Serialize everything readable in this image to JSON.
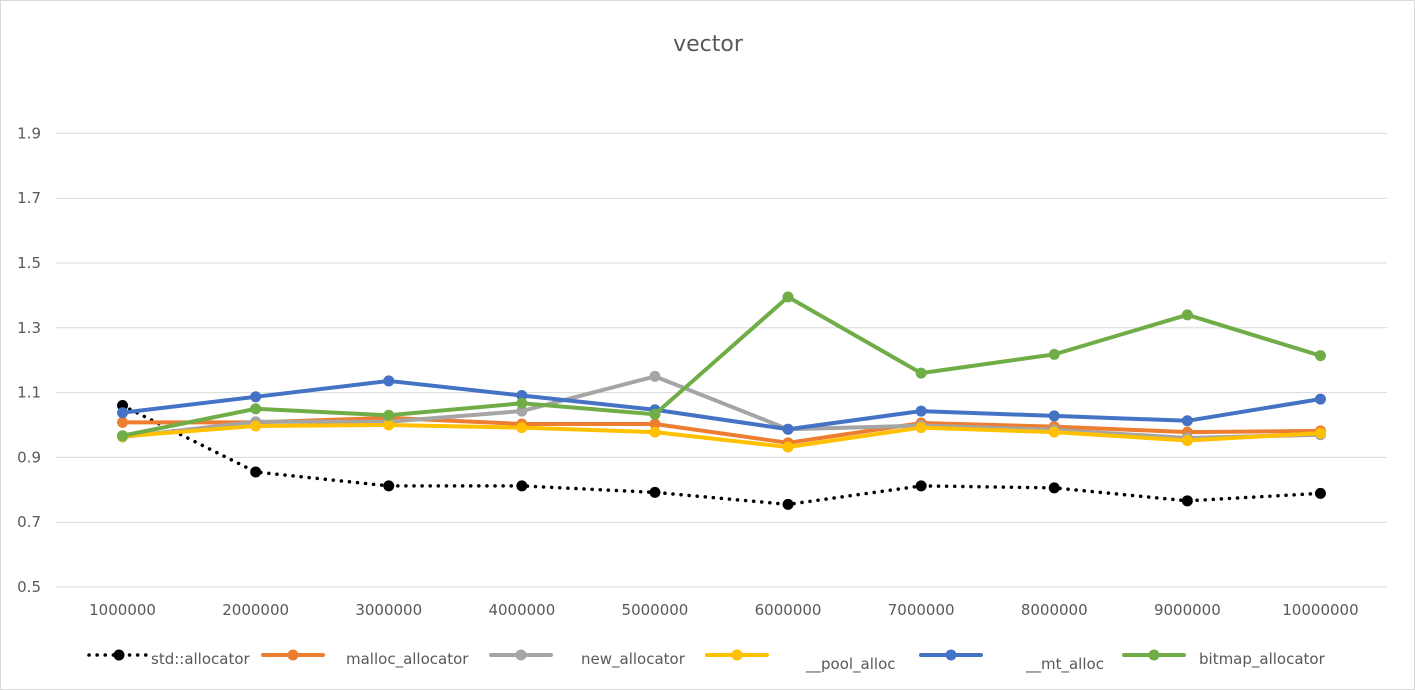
{
  "chart_data": {
    "type": "line",
    "title": "vector",
    "xlabel": "",
    "ylabel": "",
    "ylim": [
      0.5,
      2.0
    ],
    "yticks": [
      "0.5",
      "0.7",
      "0.9",
      "1.1",
      "1.3",
      "1.5",
      "1.7",
      "1.9"
    ],
    "ytick_values": [
      0.5,
      0.7,
      0.9,
      1.1,
      1.3,
      1.5,
      1.7,
      1.9
    ],
    "categories": [
      "1000000",
      "2000000",
      "3000000",
      "4000000",
      "5000000",
      "6000000",
      "7000000",
      "8000000",
      "9000000",
      "10000000"
    ],
    "grid": true,
    "legend_position": "bottom",
    "series": [
      {
        "name": "std::allocator",
        "color": "#000000",
        "style": "dotted",
        "values": [
          1.06,
          0.855,
          0.812,
          0.812,
          0.792,
          0.755,
          0.812,
          0.806,
          0.766,
          0.789
        ]
      },
      {
        "name": "malloc_allocator",
        "color": "#ED7D31",
        "style": "solid",
        "values": [
          1.008,
          1.008,
          1.022,
          1.003,
          1.003,
          0.945,
          1.006,
          0.995,
          0.978,
          0.982
        ]
      },
      {
        "name": "new_allocator",
        "color": "#A5A5A5",
        "style": "solid",
        "values": [
          0.963,
          1.01,
          1.01,
          1.043,
          1.15,
          0.987,
          0.998,
          0.985,
          0.96,
          0.97
        ]
      },
      {
        "name": "__pool_alloc",
        "color": "#FFC000",
        "style": "solid",
        "values": [
          0.965,
          0.997,
          1.0,
          0.992,
          0.978,
          0.932,
          0.992,
          0.978,
          0.952,
          0.975
        ]
      },
      {
        "name": "__mt_alloc",
        "color": "#4472C4",
        "style": "solid",
        "values": [
          1.038,
          1.087,
          1.136,
          1.091,
          1.047,
          0.987,
          1.043,
          1.028,
          1.013,
          1.08
        ]
      },
      {
        "name": "bitmap_allocator",
        "color": "#70AD47",
        "style": "solid",
        "values": [
          0.967,
          1.05,
          1.03,
          1.067,
          1.033,
          1.395,
          1.16,
          1.218,
          1.34,
          1.214
        ]
      }
    ]
  }
}
